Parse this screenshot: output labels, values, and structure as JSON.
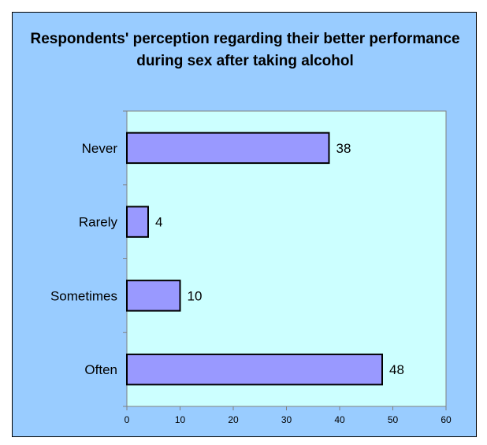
{
  "colors": {
    "frame_background": "#99ccff",
    "plot_background": "#ccffff",
    "bar_fill": "#9999ff",
    "bar_stroke": "#000000",
    "axis": "#808080"
  },
  "chart_data": {
    "type": "bar",
    "orientation": "horizontal",
    "title": "Respondents' perception regarding their better performance during sex after taking alcohol",
    "xlabel": "",
    "ylabel": "",
    "categories": [
      "Never",
      "Rarely",
      "Sometimes",
      "Often"
    ],
    "values": [
      38,
      4,
      10,
      48
    ],
    "data_labels": [
      "38",
      "4",
      "10",
      "48"
    ],
    "xlim": [
      0,
      60
    ],
    "x_ticks": [
      0,
      10,
      20,
      30,
      40,
      50,
      60
    ],
    "grid": false,
    "legend": "none"
  }
}
